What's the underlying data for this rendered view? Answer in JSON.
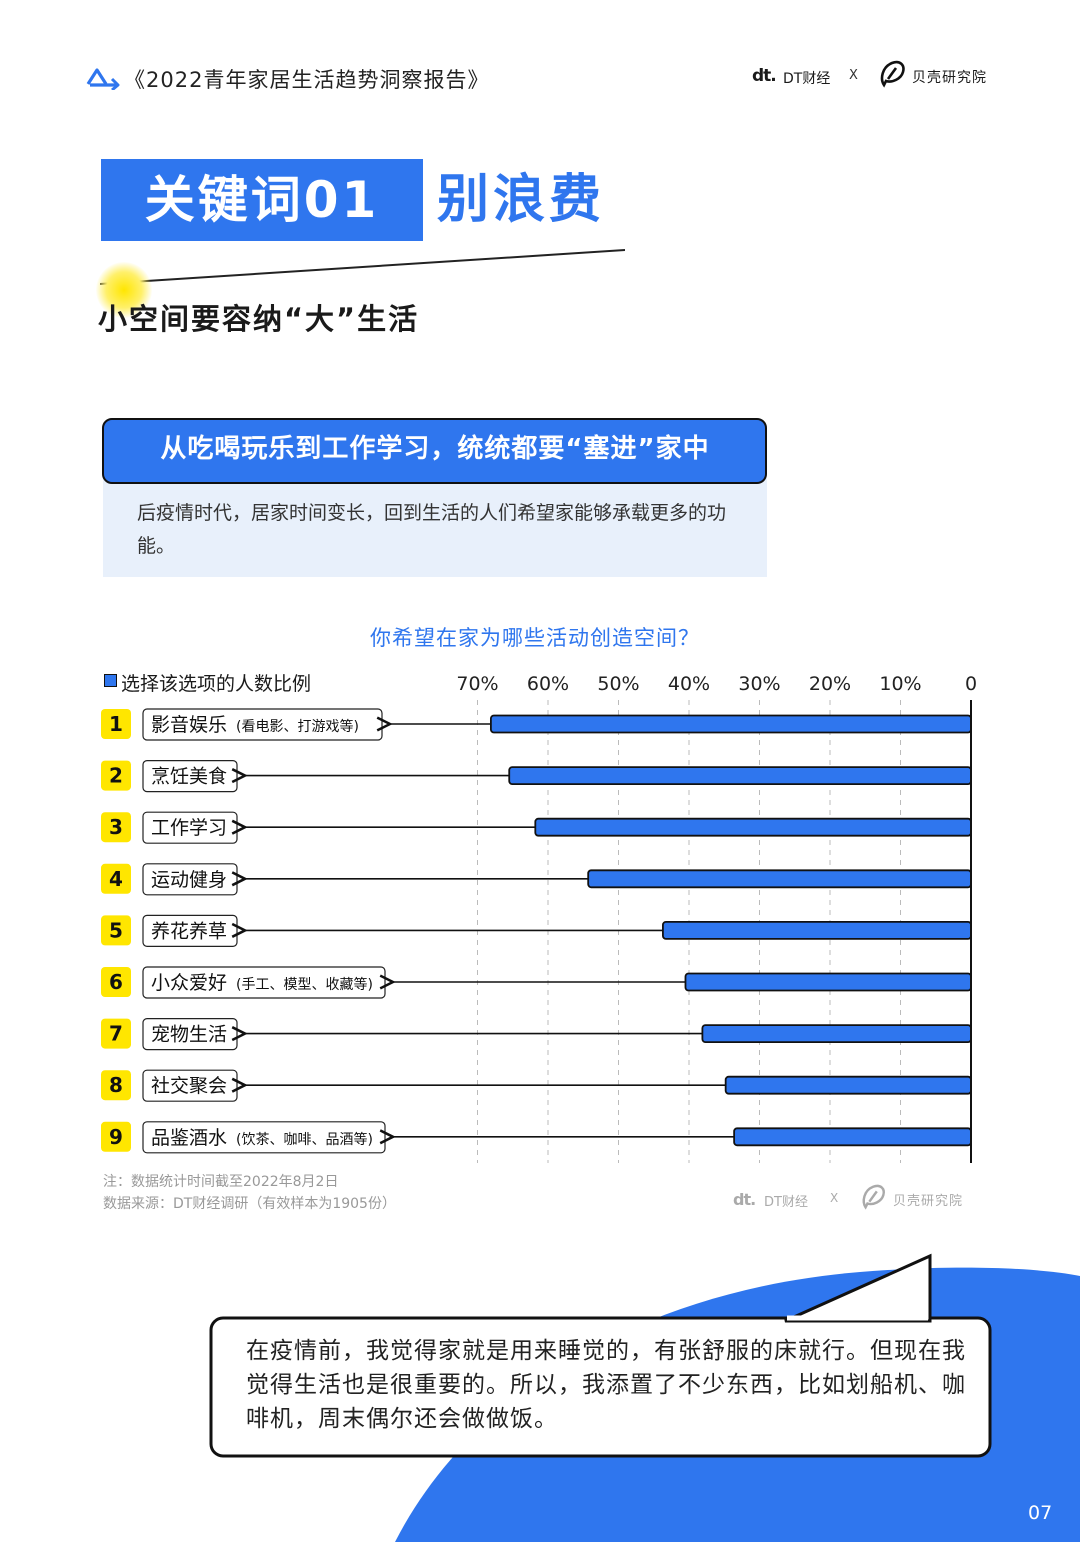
{
  "header": {
    "report_title": "《2022青年家居生活趋势洞察报告》",
    "logo_dt_mark": "dt.",
    "logo_dt_name": "DT财经",
    "logo_sep": "X",
    "logo_beike_name": "贝壳研究院"
  },
  "keyword": {
    "label": "关键词01",
    "text": "别浪费",
    "subtitle": "小空间要容纳“大”生活"
  },
  "section": {
    "heading": "从吃喝玩乐到工作学习，统统都要“塞进”家中",
    "body": "后疫情时代，居家时间变长，回到生活的人们希望家能够承载更多的功能。"
  },
  "chart_data": {
    "type": "bar",
    "orientation": "horizontal",
    "x_direction": "reversed",
    "title": "你希望在家为哪些活动创造空间？",
    "legend": "选择该选项的人数比例",
    "xlim": [
      0,
      70
    ],
    "x_ticks": [
      "70%",
      "60%",
      "50%",
      "40%",
      "30%",
      "20%",
      "10%",
      "0"
    ],
    "x_tick_values": [
      70,
      60,
      50,
      40,
      30,
      20,
      10,
      0
    ],
    "grid": "vertical-dashed",
    "bar_color": "#2f76ee",
    "ranks": [
      "1",
      "2",
      "3",
      "4",
      "5",
      "6",
      "7",
      "8",
      "9"
    ],
    "categories": [
      "影音娱乐",
      "烹饪美食",
      "工作学习",
      "运动健身",
      "养花养草",
      "小众爱好",
      "宠物生活",
      "社交聚会",
      "品鉴酒水"
    ],
    "category_notes": [
      "(看电影、打游戏等)",
      "",
      "",
      "",
      "",
      "(手工、模型、收藏等)",
      "",
      "",
      "(饮茶、咖啡、品酒等)"
    ],
    "values": [
      68.1,
      65.5,
      61.8,
      54.3,
      43.7,
      40.5,
      38.1,
      34.8,
      33.6
    ]
  },
  "notes": {
    "note": "注：数据统计时间截至2022年8月2日",
    "source": "数据来源：DT财经调研（有效样本为1905份）"
  },
  "watermark": {
    "dt_mark": "dt.",
    "dt_name": "DT财经",
    "sep": "X",
    "beike_name": "贝壳研究院"
  },
  "quote": "在疫情前，我觉得家就是用来睡觉的，有张舒服的床就行。但现在我觉得生活也是很重要的。所以，我添置了不少东西，比如划船机、咖啡机，周末偶尔还会做做饭。",
  "page_number": "07",
  "colors": {
    "accent": "#2f76ee",
    "highlight": "#ffe600",
    "light_panel": "#e8f0fb"
  }
}
